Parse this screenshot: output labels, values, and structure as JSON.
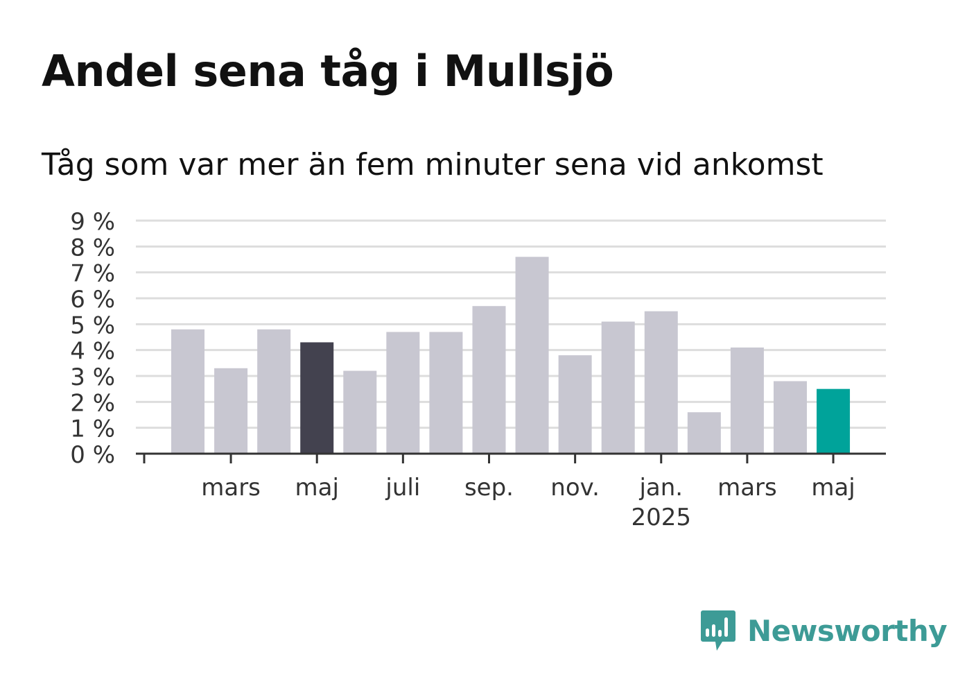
{
  "title": "Andel sena tåg i Mullsjö",
  "subtitle": "Tåg som var mer än fem minuter sena vid ankomst",
  "brand": {
    "name": "Newsworthy",
    "color": "#3d9b96",
    "icon": "newsworthy-logo-icon"
  },
  "colors": {
    "default_bar": "#c8c7d1",
    "highlight_bar": "#43424f",
    "latest_bar": "#00a39a",
    "grid": "#dddddd",
    "axis": "#333333"
  },
  "chart_data": {
    "type": "bar",
    "ylim": [
      0,
      9
    ],
    "yticks": [
      0,
      1,
      2,
      3,
      4,
      5,
      6,
      7,
      8,
      9
    ],
    "ytick_labels": [
      "0 %",
      "1 %",
      "2 %",
      "3 %",
      "4 %",
      "5 %",
      "6 %",
      "7 %",
      "8 %",
      "9 %"
    ],
    "grid": true,
    "categories": [
      "2024-02",
      "2024-03",
      "2024-04",
      "2024-05",
      "2024-06",
      "2024-07",
      "2024-08",
      "2024-09",
      "2024-10",
      "2024-11",
      "2024-12",
      "2025-01",
      "2025-02",
      "2025-03",
      "2025-04",
      "2025-05"
    ],
    "values": [
      4.8,
      3.3,
      4.8,
      4.3,
      3.2,
      4.7,
      4.7,
      5.7,
      7.6,
      3.8,
      5.1,
      5.5,
      1.6,
      4.1,
      2.8,
      2.5
    ],
    "highlight": [
      3,
      15
    ],
    "xtick_labels": [
      {
        "index": 1,
        "label": "mars"
      },
      {
        "index": 3,
        "label": "maj"
      },
      {
        "index": 5,
        "label": "juli"
      },
      {
        "index": 7,
        "label": "sep."
      },
      {
        "index": 9,
        "label": "nov."
      },
      {
        "index": 11,
        "label": "jan.",
        "sublabel": "2025"
      },
      {
        "index": 13,
        "label": "mars"
      },
      {
        "index": 15,
        "label": "maj"
      }
    ]
  }
}
